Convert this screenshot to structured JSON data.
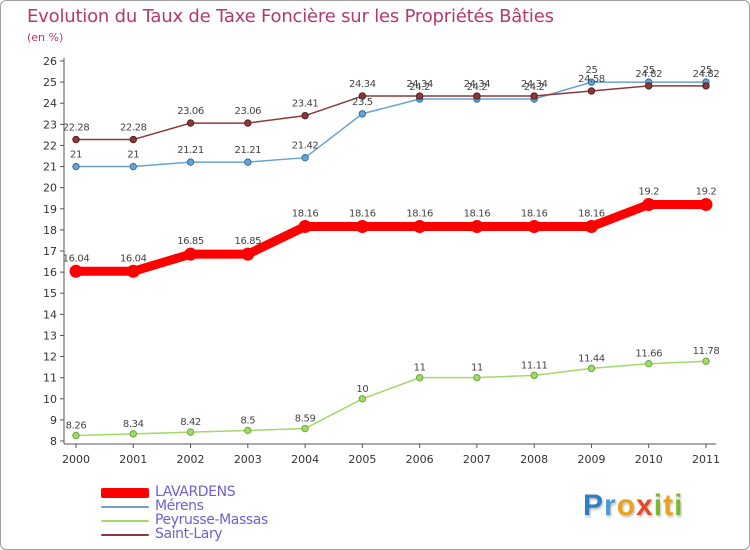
{
  "chart_data": {
    "type": "line",
    "title": "Evolution du Taux de Taxe Foncière sur les Propriétés Bâties",
    "subtitle": "(en %)",
    "categories": [
      "2000",
      "2001",
      "2002",
      "2003",
      "2004",
      "2005",
      "2006",
      "2007",
      "2008",
      "2009",
      "2010",
      "2011"
    ],
    "yticks": [
      "8",
      "9",
      "10",
      "11",
      "12",
      "13",
      "14",
      "15",
      "16",
      "17",
      "18",
      "19",
      "20",
      "21",
      "22",
      "23",
      "24",
      "25",
      "26"
    ],
    "ylim": [
      8,
      26
    ],
    "grid": false,
    "series": [
      {
        "name": "LAVARDENS",
        "color": "#ff0000",
        "values": [
          16.04,
          16.04,
          16.85,
          16.85,
          18.16,
          18.16,
          18.16,
          18.16,
          18.16,
          18.16,
          19.2,
          19.2
        ],
        "labels": [
          "16.04",
          "16.04",
          "16.85",
          "16.85",
          "18.16",
          "18.16",
          "18.16",
          "18.16",
          "18.16",
          "18.16",
          "19.2",
          "19.2"
        ]
      },
      {
        "name": "Mérens",
        "color": "#6aa3cf",
        "values": [
          21,
          21,
          21.21,
          21.21,
          21.42,
          23.5,
          24.2,
          24.2,
          24.2,
          25,
          25,
          25
        ],
        "labels": [
          "21",
          "21",
          "21.21",
          "21.21",
          "21.42",
          "23.5",
          "24.2",
          "24.2",
          "24.2",
          "25",
          "25",
          "25"
        ]
      },
      {
        "name": "Peyrusse-Massas",
        "color": "#a3d86a",
        "values": [
          8.26,
          8.34,
          8.42,
          8.5,
          8.59,
          10,
          11,
          11,
          11.11,
          11.44,
          11.66,
          11.78
        ],
        "labels": [
          "8.26",
          "8.34",
          "8.42",
          "8.5",
          "8.59",
          "10",
          "11",
          "11",
          "11.11",
          "11.44",
          "11.66",
          "11.78"
        ]
      },
      {
        "name": "Saint-Lary",
        "color": "#8a3a3a",
        "values": [
          22.28,
          22.28,
          23.06,
          23.06,
          23.41,
          24.34,
          24.34,
          24.34,
          24.34,
          24.58,
          24.82,
          24.82
        ],
        "labels": [
          "22.28",
          "22.28",
          "23.06",
          "23.06",
          "23.41",
          "24.34",
          "24.34",
          "24.34",
          "24.34",
          "24.58",
          "24.82",
          "24.82"
        ]
      }
    ],
    "legend_position": "bottom-left"
  },
  "colors": {
    "title": "#b5386f",
    "legend_text": "#6f5fd2",
    "axis": "#555555"
  },
  "logo": {
    "letters": [
      "P",
      "r",
      "o",
      "x",
      "i",
      "t",
      "i"
    ],
    "colors": [
      "#2e7fc4",
      "#4a9bd8",
      "#e9a21a",
      "#e54a2a",
      "#7cb82f",
      "#e9a21a",
      "#7cb82f"
    ]
  }
}
